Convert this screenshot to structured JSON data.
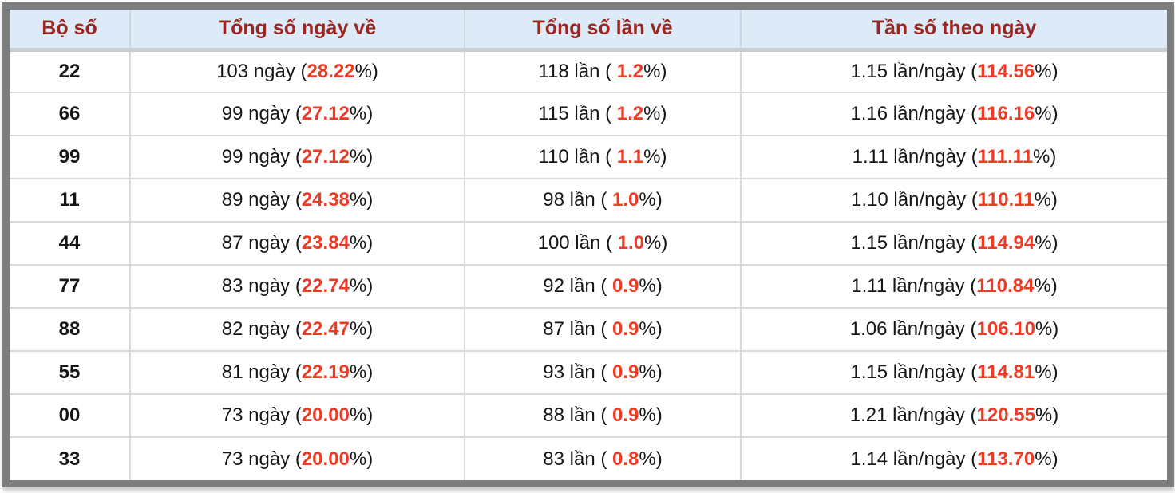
{
  "table": {
    "headers": [
      {
        "key": "pair",
        "label": "Bộ số"
      },
      {
        "key": "totaldays",
        "label": "Tổng số ngày về"
      },
      {
        "key": "totaltimes",
        "label": "Tổng số lần về"
      },
      {
        "key": "frequency",
        "label": "Tần số theo ngày"
      }
    ],
    "units": {
      "days": "ngày",
      "times": "lần",
      "freq": "lần/ngày"
    },
    "rows": [
      {
        "pair": "22",
        "days": "103",
        "days_pct": "28.22",
        "times": "118",
        "times_pct": "1.2",
        "freq": "1.15",
        "freq_pct": "114.56"
      },
      {
        "pair": "66",
        "days": "99",
        "days_pct": "27.12",
        "times": "115",
        "times_pct": "1.2",
        "freq": "1.16",
        "freq_pct": "116.16"
      },
      {
        "pair": "99",
        "days": "99",
        "days_pct": "27.12",
        "times": "110",
        "times_pct": "1.1",
        "freq": "1.11",
        "freq_pct": "111.11"
      },
      {
        "pair": "11",
        "days": "89",
        "days_pct": "24.38",
        "times": "98",
        "times_pct": "1.0",
        "freq": "1.10",
        "freq_pct": "110.11"
      },
      {
        "pair": "44",
        "days": "87",
        "days_pct": "23.84",
        "times": "100",
        "times_pct": "1.0",
        "freq": "1.15",
        "freq_pct": "114.94"
      },
      {
        "pair": "77",
        "days": "83",
        "days_pct": "22.74",
        "times": "92",
        "times_pct": "0.9",
        "freq": "1.11",
        "freq_pct": "110.84"
      },
      {
        "pair": "88",
        "days": "82",
        "days_pct": "22.47",
        "times": "87",
        "times_pct": "0.9",
        "freq": "1.06",
        "freq_pct": "106.10"
      },
      {
        "pair": "55",
        "days": "81",
        "days_pct": "22.19",
        "times": "93",
        "times_pct": "0.9",
        "freq": "1.15",
        "freq_pct": "114.81"
      },
      {
        "pair": "00",
        "days": "73",
        "days_pct": "20.00",
        "times": "88",
        "times_pct": "0.9",
        "freq": "1.21",
        "freq_pct": "120.55"
      },
      {
        "pair": "33",
        "days": "73",
        "days_pct": "20.00",
        "times": "83",
        "times_pct": "0.8",
        "freq": "1.14",
        "freq_pct": "113.70"
      }
    ]
  },
  "colors": {
    "header_bg": "#dcebf7",
    "header_text": "#9b2521",
    "highlight_red": "#ee3b26",
    "frame_gray": "#7b7d7f",
    "cell_border": "#d8dadc"
  }
}
